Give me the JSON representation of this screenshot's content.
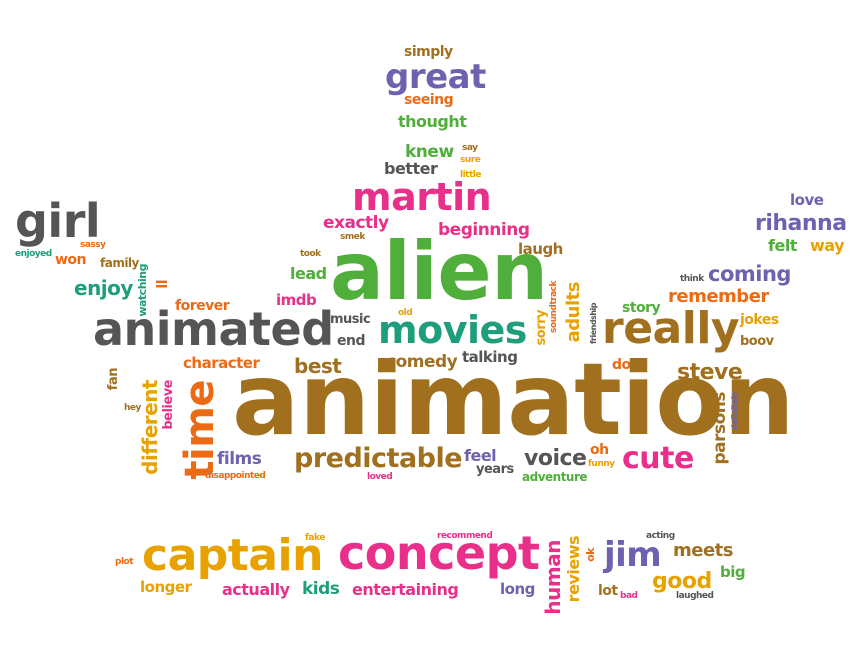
{
  "colors": {
    "brown": "#A0701E",
    "pink": "#E8308A",
    "green": "#4FAF3A",
    "purple": "#6E62B0",
    "orange": "#EC6A14",
    "gray": "#555555",
    "gold": "#E8A200",
    "teal": "#1E9E7C"
  },
  "words": [
    "simply",
    "great",
    "seeing",
    "thought",
    "knew",
    "say",
    "sure",
    "better",
    "little",
    "martin",
    "girl",
    "exactly",
    "smek",
    "beginning",
    "love",
    "rihanna",
    "sassy",
    "enjoyed",
    "won",
    "family",
    "took",
    "laugh",
    "felt",
    "way",
    "alien",
    "watching",
    "think",
    "coming",
    "enjoy",
    "lead",
    "ll",
    "remember",
    "forever",
    "imdb",
    "story",
    "animated",
    "music",
    "movies",
    "old",
    "really",
    "jokes",
    "end",
    "talking",
    "boov",
    "character",
    "best",
    "comedy",
    "don",
    "fan",
    "steve",
    "hey",
    "animation",
    "believe",
    "different",
    "parsons",
    "definitely",
    "time",
    "films",
    "predictable",
    "feel",
    "voice",
    "oh",
    "funny",
    "cute",
    "years",
    "disappointed",
    "loved",
    "adventure",
    "soundtrack",
    "sorry",
    "adults",
    "friendship",
    "plot",
    "fake",
    "recommend",
    "acting",
    "captain",
    "concept",
    "human",
    "reviews",
    "ok",
    "jim",
    "meets",
    "longer",
    "actually",
    "kids",
    "entertaining",
    "long",
    "lot",
    "bad",
    "good",
    "laughed",
    "big"
  ]
}
